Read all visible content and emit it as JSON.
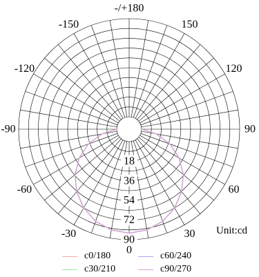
{
  "chart_data": {
    "type": "polar-line",
    "unit_label": "Unit:cd",
    "angle_labels": [
      {
        "angle": 0,
        "text": "0"
      },
      {
        "angle": 30,
        "text": "30"
      },
      {
        "angle": 60,
        "text": "60"
      },
      {
        "angle": 90,
        "text": "90"
      },
      {
        "angle": 120,
        "text": "120"
      },
      {
        "angle": 150,
        "text": "150"
      },
      {
        "angle": 180,
        "text": "-/+180"
      },
      {
        "angle": -150,
        "text": "-150"
      },
      {
        "angle": -120,
        "text": "-120"
      },
      {
        "angle": -90,
        "text": "-90"
      },
      {
        "angle": -60,
        "text": "-60"
      },
      {
        "angle": -30,
        "text": "-30"
      }
    ],
    "radial_ticks": [
      18,
      36,
      54,
      72,
      90
    ],
    "rmax": 90,
    "grid": true,
    "legend_position": "bottom",
    "series": [
      {
        "name": "c0/180",
        "color": "#f4a8a8",
        "angles": [
          -90,
          -80,
          -70,
          -60,
          -50,
          -40,
          -30,
          -20,
          -10,
          0,
          10,
          20,
          30,
          40,
          50,
          60,
          70,
          80,
          90
        ],
        "values": [
          0,
          14,
          28.5,
          41.5,
          53.5,
          63.5,
          72,
          78.5,
          82.5,
          84,
          82.5,
          78.5,
          72,
          63.5,
          53.5,
          41.5,
          28.5,
          14,
          0
        ]
      },
      {
        "name": "c60/240",
        "color": "#a8a8f0",
        "angles": [
          -90,
          -80,
          -70,
          -60,
          -50,
          -40,
          -30,
          -20,
          -10,
          0,
          10,
          20,
          30,
          40,
          50,
          60,
          70,
          80,
          90
        ],
        "values": [
          0,
          14,
          28.5,
          41.5,
          53.5,
          63.5,
          72,
          78.5,
          82.5,
          84,
          82.5,
          78.5,
          72,
          63.5,
          53.5,
          41.5,
          28.5,
          14,
          0
        ]
      },
      {
        "name": "c30/210",
        "color": "#9ce69c",
        "angles": [
          -90,
          -80,
          -70,
          -60,
          -50,
          -40,
          -30,
          -20,
          -10,
          0,
          10,
          20,
          30,
          40,
          50,
          60,
          70,
          80,
          90
        ],
        "values": [
          0,
          14,
          28.5,
          41.5,
          53.5,
          63.5,
          72,
          78.5,
          82.5,
          84,
          82.5,
          78.5,
          72,
          63.5,
          53.5,
          41.5,
          28.5,
          14,
          0
        ]
      },
      {
        "name": "c90/270",
        "color": "#d8a0d8",
        "angles": [
          -90,
          -80,
          -70,
          -60,
          -50,
          -40,
          -30,
          -20,
          -10,
          0,
          10,
          20,
          30,
          40,
          50,
          60,
          70,
          80,
          90
        ],
        "values": [
          0,
          14,
          28.5,
          41.5,
          53.5,
          63.5,
          72,
          78.5,
          82.5,
          84,
          82.5,
          78.5,
          72,
          63.5,
          53.5,
          41.5,
          28.5,
          14,
          0
        ]
      }
    ]
  }
}
